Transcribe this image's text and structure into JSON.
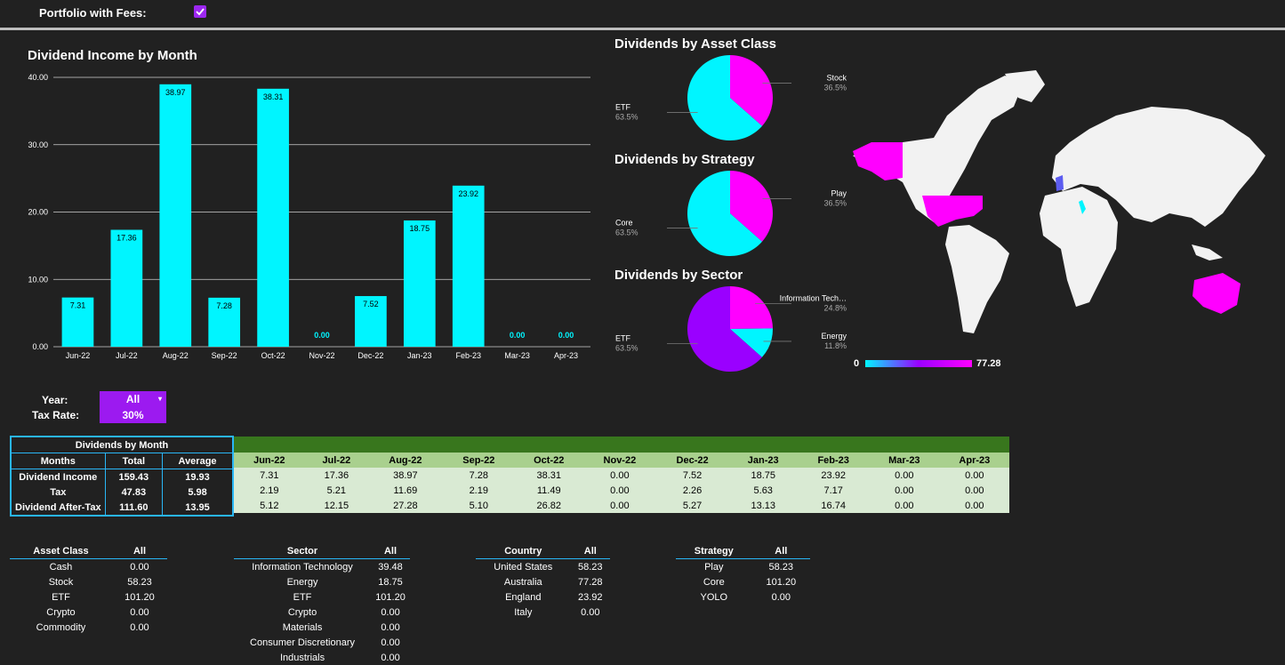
{
  "header": {
    "portfolio_fees_label": "Portfolio with Fees:",
    "portfolio_fees_checked": true
  },
  "bar_chart": {
    "title": "Dividend Income by Month"
  },
  "chart_data": [
    {
      "type": "bar",
      "title": "Dividend Income by Month",
      "categories": [
        "Jun-22",
        "Jul-22",
        "Aug-22",
        "Sep-22",
        "Oct-22",
        "Nov-22",
        "Dec-22",
        "Jan-23",
        "Feb-23",
        "Mar-23",
        "Apr-23"
      ],
      "values": [
        7.31,
        17.36,
        38.97,
        7.28,
        38.31,
        0.0,
        7.52,
        18.75,
        23.92,
        0.0,
        0.0
      ],
      "value_labels": [
        "7.31",
        "17.36",
        "38.97",
        "7.28",
        "38.31",
        "0.00",
        "7.52",
        "18.75",
        "23.92",
        "0.00",
        "0.00"
      ],
      "yticks": [
        "0.00",
        "10.00",
        "20.00",
        "30.00",
        "40.00"
      ],
      "ylim": [
        0,
        40
      ],
      "grid": true,
      "color": "#00f5ff"
    },
    {
      "type": "pie",
      "title": "Dividends by Asset Class",
      "slices": [
        {
          "label": "Stock",
          "value": 36.5,
          "pct": "36.5%",
          "color": "#ff00ff"
        },
        {
          "label": "ETF",
          "value": 63.5,
          "pct": "63.5%",
          "color": "#00f5ff"
        }
      ]
    },
    {
      "type": "pie",
      "title": "Dividends by Strategy",
      "slices": [
        {
          "label": "Play",
          "value": 36.5,
          "pct": "36.5%",
          "color": "#ff00ff"
        },
        {
          "label": "Core",
          "value": 63.5,
          "pct": "63.5%",
          "color": "#00f5ff"
        }
      ]
    },
    {
      "type": "pie",
      "title": "Dividends by Sector",
      "slices": [
        {
          "label": "Information Tech…",
          "value": 24.8,
          "pct": "24.8%",
          "color": "#ff00ff"
        },
        {
          "label": "Energy",
          "value": 11.8,
          "pct": "11.8%",
          "color": "#00f5ff"
        },
        {
          "label": "ETF",
          "value": 63.5,
          "pct": "63.5%",
          "color": "#9a00ff"
        }
      ]
    }
  ],
  "map": {
    "legend_min": "0",
    "legend_max": "77.28",
    "color_low": "#00f5ff",
    "color_high": "#ff00ff",
    "land_color": "#f2f2f2"
  },
  "controls": {
    "year_label": "Year:",
    "year_value": "All",
    "tax_label": "Tax Rate:",
    "tax_value": "30%"
  },
  "dividends_table": {
    "title": "Dividends by Month",
    "headers": [
      "Months",
      "Total",
      "Average"
    ],
    "rows": [
      {
        "label": "Dividend Income",
        "total": "159.43",
        "avg": "19.93"
      },
      {
        "label": "Tax",
        "total": "47.83",
        "avg": "5.98"
      },
      {
        "label": "Dividend After-Tax",
        "total": "111.60",
        "avg": "13.95"
      }
    ]
  },
  "monthly_table": {
    "months": [
      "Jun-22",
      "Jul-22",
      "Aug-22",
      "Sep-22",
      "Oct-22",
      "Nov-22",
      "Dec-22",
      "Jan-23",
      "Feb-23",
      "Mar-23",
      "Apr-23"
    ],
    "rows": [
      [
        "7.31",
        "17.36",
        "38.97",
        "7.28",
        "38.31",
        "0.00",
        "7.52",
        "18.75",
        "23.92",
        "0.00",
        "0.00"
      ],
      [
        "2.19",
        "5.21",
        "11.69",
        "2.19",
        "11.49",
        "0.00",
        "2.26",
        "5.63",
        "7.17",
        "0.00",
        "0.00"
      ],
      [
        "5.12",
        "12.15",
        "27.28",
        "5.10",
        "26.82",
        "0.00",
        "5.27",
        "13.13",
        "16.74",
        "0.00",
        "0.00"
      ]
    ]
  },
  "asset_class_table": {
    "col1": "Asset Class",
    "col2": "All",
    "rows": [
      [
        "Cash",
        "0.00"
      ],
      [
        "Stock",
        "58.23"
      ],
      [
        "ETF",
        "101.20"
      ],
      [
        "Crypto",
        "0.00"
      ],
      [
        "Commodity",
        "0.00"
      ]
    ]
  },
  "sector_table": {
    "col1": "Sector",
    "col2": "All",
    "rows": [
      [
        "Information Technology",
        "39.48"
      ],
      [
        "Energy",
        "18.75"
      ],
      [
        "ETF",
        "101.20"
      ],
      [
        "Crypto",
        "0.00"
      ],
      [
        "Materials",
        "0.00"
      ],
      [
        "Consumer Discretionary",
        "0.00"
      ],
      [
        "Industrials",
        "0.00"
      ]
    ]
  },
  "country_table": {
    "col1": "Country",
    "col2": "All",
    "rows": [
      [
        "United States",
        "58.23"
      ],
      [
        "Australia",
        "77.28"
      ],
      [
        "England",
        "23.92"
      ],
      [
        "Italy",
        "0.00"
      ]
    ]
  },
  "strategy_table": {
    "col1": "Strategy",
    "col2": "All",
    "rows": [
      [
        "Play",
        "58.23"
      ],
      [
        "Core",
        "101.20"
      ],
      [
        "YOLO",
        "0.00"
      ]
    ]
  }
}
